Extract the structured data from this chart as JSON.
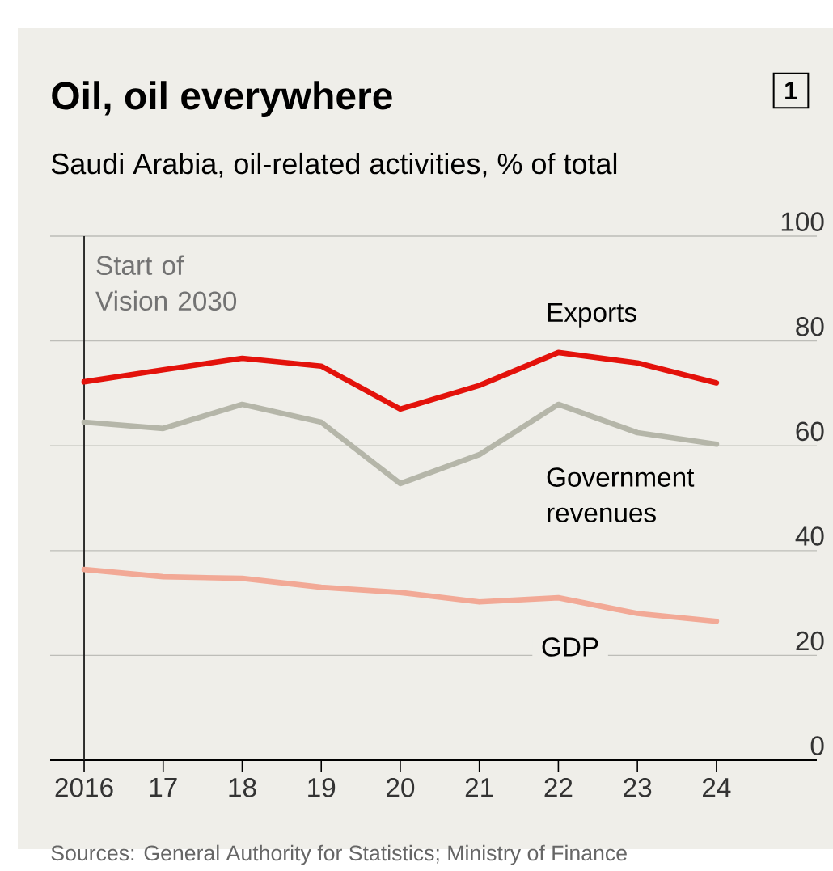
{
  "chart_data": {
    "type": "line",
    "title": "Oil, oil everywhere",
    "subtitle": "Saudi Arabia, oil-related activities, % of total",
    "x": [
      2016,
      2017,
      2018,
      2019,
      2020,
      2021,
      2022,
      2023,
      2024
    ],
    "series": [
      {
        "name": "Exports",
        "color": "#e3120b",
        "values": [
          72.2,
          74.5,
          76.7,
          75.2,
          67,
          71.5,
          77.8,
          75.8,
          72
        ]
      },
      {
        "name": "Government revenues",
        "color": "#b5b6a9",
        "values": [
          64.5,
          63.3,
          67.9,
          64.5,
          52.8,
          58.3,
          67.9,
          62.5,
          60.3
        ]
      },
      {
        "name": "GDP",
        "color": "#f2a996",
        "values": [
          36.4,
          35,
          34.7,
          33,
          32,
          30.2,
          31,
          28,
          26.5
        ]
      }
    ],
    "xlim": [
      2015.57,
      2025.27
    ],
    "ylim": [
      0,
      100
    ],
    "xticks": [
      {
        "value": 2016,
        "label": "2016"
      },
      {
        "value": 2017,
        "label": "17"
      },
      {
        "value": 2018,
        "label": "18"
      },
      {
        "value": 2019,
        "label": "19"
      },
      {
        "value": 2020,
        "label": "20"
      },
      {
        "value": 2021,
        "label": "21"
      },
      {
        "value": 2022,
        "label": "22"
      },
      {
        "value": 2023,
        "label": "23"
      },
      {
        "value": 2024,
        "label": "24"
      }
    ],
    "yticks": [
      0,
      20,
      40,
      60,
      80,
      100
    ],
    "ref_lines": [
      {
        "axis": "x",
        "value": 2016,
        "label": "Start of Vision 2030",
        "color": "#222222"
      }
    ],
    "grid": "y",
    "marker": "none",
    "annotations": [
      "1",
      "Sources: General Authority for Statistics; Ministry of Finance"
    ]
  }
}
